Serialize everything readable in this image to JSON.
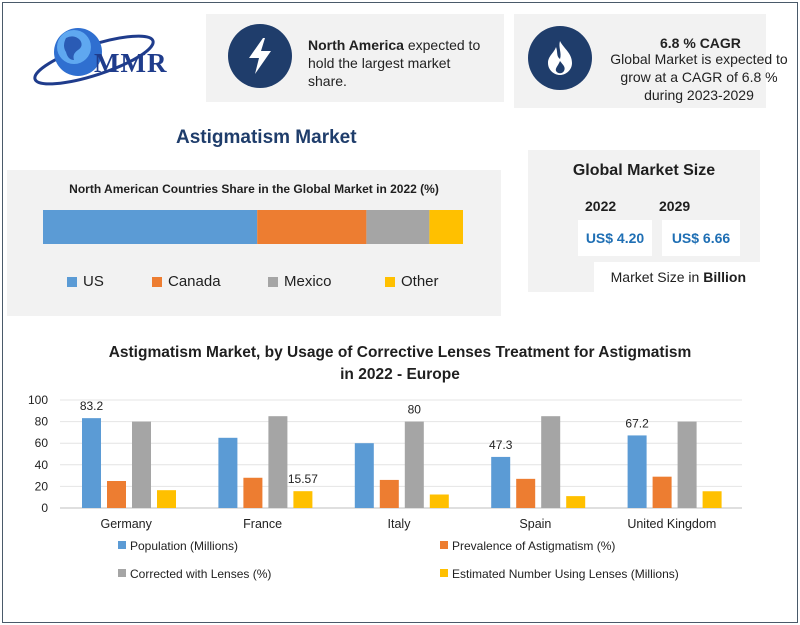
{
  "logo": {
    "text": "MMR"
  },
  "info_region": {
    "bold": "North America",
    "rest": "expected to hold the largest market share."
  },
  "info_cagr": {
    "title": "6.8 % CAGR",
    "text": "Global Market is expected to grow at a CAGR of 6.8 % during 2023-2029"
  },
  "page_title": "Astigmatism Market",
  "colors": {
    "us": "#5b9bd5",
    "canada": "#ed7d31",
    "mexico": "#a5a5a5",
    "other": "#ffc000",
    "navy": "#1f3d6b",
    "accent_blue": "#1f6fb4"
  },
  "global_market": {
    "title": "Global Market Size",
    "year1": "2022",
    "value1": "US$ 4.20",
    "year2": "2029",
    "value2": "US$ 6.66",
    "unit_prefix": "Market Size in",
    "unit_bold": "Billion"
  },
  "icons": {
    "info_region": "lightning-icon",
    "info_cagr": "flame-icon",
    "logo": "globe-icon"
  },
  "chart_data": [
    {
      "type": "bar",
      "orientation": "horizontal-stacked",
      "title": "North American Countries Share in the Global Market in 2022  (%)",
      "categories": [
        ""
      ],
      "series": [
        {
          "name": "US",
          "values": [
            51
          ]
        },
        {
          "name": "Canada",
          "values": [
            26
          ]
        },
        {
          "name": "Mexico",
          "values": [
            15
          ]
        },
        {
          "name": "Other",
          "values": [
            8
          ]
        }
      ],
      "legend": "bottom"
    },
    {
      "type": "bar",
      "title_line1": "Astigmatism Market, by Usage of Corrective Lenses Treatment for Astigmatism",
      "title_line2": "in 2022 - Europe",
      "categories": [
        "Germany",
        "France",
        "Italy",
        "Spain",
        "United Kingdom"
      ],
      "series": [
        {
          "name": "Population (Millions)",
          "values": [
            83.2,
            65,
            60,
            47.3,
            67.2
          ]
        },
        {
          "name": "Prevalence of Astigmatism (%)",
          "values": [
            25,
            28,
            26,
            27,
            29
          ]
        },
        {
          "name": "Corrected with Lenses (%)",
          "values": [
            80,
            85,
            80,
            85,
            80
          ]
        },
        {
          "name": "Estimated Number Using Lenses (Millions)",
          "values": [
            16.5,
            15.57,
            12.5,
            11,
            15.5
          ]
        }
      ],
      "data_labels": [
        {
          "category": "Germany",
          "series": 0,
          "text": "83.2"
        },
        {
          "category": "France",
          "series": 3,
          "text": "15.57"
        },
        {
          "category": "Italy",
          "series": 2,
          "text": "80"
        },
        {
          "category": "Spain",
          "series": 0,
          "text": "47.3"
        },
        {
          "category": "United Kingdom",
          "series": 0,
          "text": "67.2"
        }
      ],
      "yticks": [
        "0",
        "20",
        "40",
        "60",
        "80",
        "100"
      ],
      "ylim": [
        0,
        100
      ],
      "grid": true,
      "legend": "bottom"
    }
  ]
}
